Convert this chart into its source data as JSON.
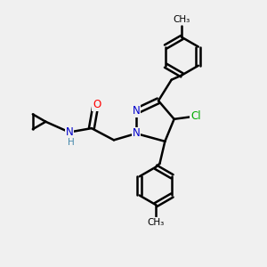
{
  "bg_color": "#f0f0f0",
  "bond_color": "#000000",
  "bond_width": 1.8,
  "atom_colors": {
    "N": "#0000cc",
    "O": "#ff0000",
    "Cl": "#00aa00",
    "H": "#4488aa",
    "C": "#000000"
  },
  "font_size": 8.5
}
